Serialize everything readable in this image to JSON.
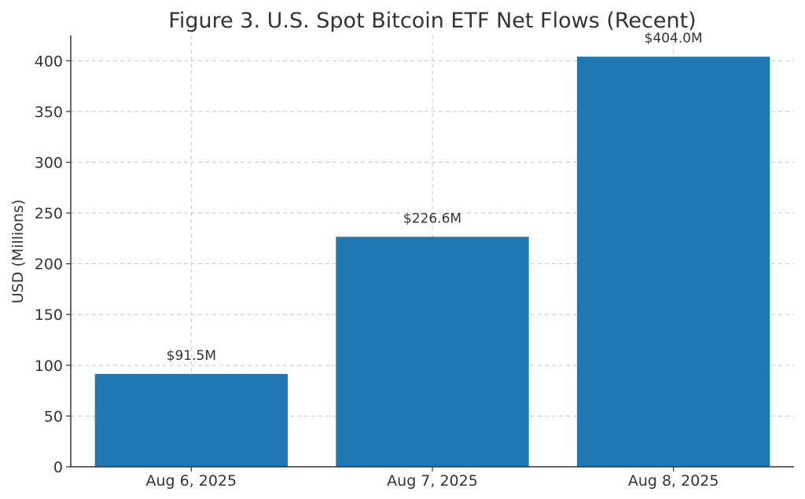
{
  "chart_data": {
    "type": "bar",
    "title": "Figure 3. U.S. Spot Bitcoin ETF Net Flows (Recent)",
    "xlabel": "",
    "ylabel": "USD (Millions)",
    "categories": [
      "Aug 6, 2025",
      "Aug 7, 2025",
      "Aug 8, 2025"
    ],
    "values": [
      91.5,
      226.6,
      404.0
    ],
    "data_labels": [
      "$91.5M",
      "$226.6M",
      "$404.0M"
    ],
    "ylim": [
      0,
      425
    ],
    "yticks": [
      0,
      50,
      100,
      150,
      200,
      250,
      300,
      350,
      400
    ],
    "grid": true,
    "bar_color": "#1f77b4"
  }
}
